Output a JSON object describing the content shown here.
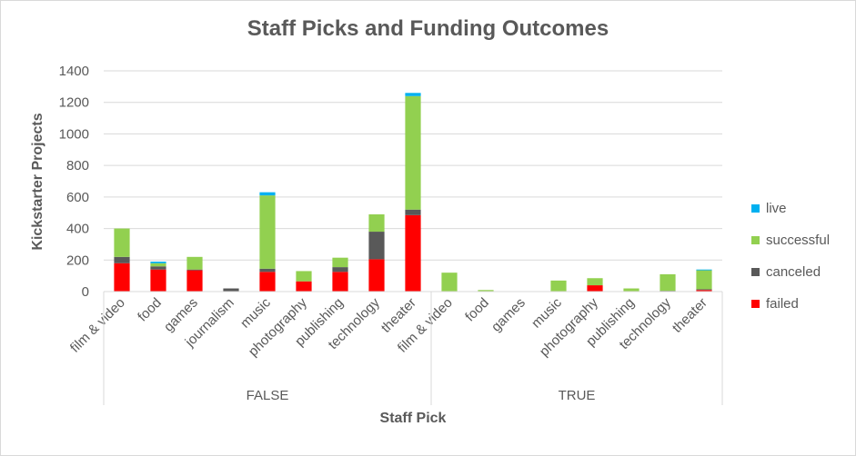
{
  "chart_data": {
    "type": "bar",
    "stacked": true,
    "title": "Staff Picks and Funding Outcomes",
    "xlabel": "Staff Pick",
    "ylabel": "Kickstarter Projects",
    "ylim": [
      0,
      1400
    ],
    "yticks": [
      0,
      200,
      400,
      600,
      800,
      1000,
      1200,
      1400
    ],
    "grid": true,
    "legend_position": "right",
    "groups": [
      {
        "name": "FALSE",
        "categories": [
          "film & video",
          "food",
          "games",
          "journalism",
          "music",
          "photography",
          "publishing",
          "technology",
          "theater"
        ]
      },
      {
        "name": "TRUE",
        "categories": [
          "film & video",
          "food",
          "games",
          "music",
          "photography",
          "publishing",
          "technology",
          "theater"
        ]
      }
    ],
    "series": [
      {
        "name": "failed",
        "color": "#ff0000",
        "values": [
          180,
          140,
          135,
          0,
          125,
          65,
          125,
          205,
          485,
          0,
          0,
          0,
          0,
          40,
          0,
          0,
          10
        ]
      },
      {
        "name": "canceled",
        "color": "#595959",
        "values": [
          40,
          20,
          5,
          20,
          20,
          0,
          30,
          175,
          35,
          0,
          0,
          0,
          0,
          0,
          0,
          5,
          5
        ]
      },
      {
        "name": "successful",
        "color": "#92d050",
        "values": [
          180,
          20,
          80,
          0,
          465,
          65,
          60,
          110,
          720,
          120,
          10,
          0,
          70,
          45,
          20,
          105,
          120
        ]
      },
      {
        "name": "live",
        "color": "#00b0f0",
        "values": [
          0,
          10,
          0,
          0,
          20,
          0,
          0,
          0,
          20,
          0,
          0,
          0,
          0,
          0,
          0,
          0,
          5
        ]
      }
    ]
  }
}
